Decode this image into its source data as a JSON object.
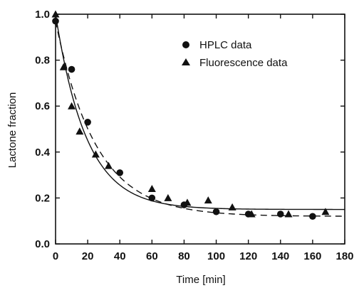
{
  "chart_data": {
    "type": "scatter",
    "xlabel": "Time [min]",
    "ylabel": "Lactone fraction",
    "xlim": [
      0,
      180
    ],
    "ylim": [
      0.0,
      1.0
    ],
    "xticks": [
      0,
      20,
      40,
      60,
      80,
      100,
      120,
      140,
      160,
      180
    ],
    "xtick_labels": [
      "0",
      "20",
      "40",
      "60",
      "80",
      "100",
      "120",
      "140",
      "160",
      "180"
    ],
    "yticks": [
      0.0,
      0.2,
      0.4,
      0.6,
      0.8,
      1.0
    ],
    "ytick_labels": [
      "0.0",
      "0.2",
      "0.4",
      "0.6",
      "0.8",
      "1.0"
    ],
    "grid": false,
    "legend_position": "top-right",
    "series": [
      {
        "name": "HPLC data",
        "marker": "circle",
        "x": [
          0,
          10,
          20,
          40,
          60,
          80,
          100,
          120,
          140,
          160
        ],
        "y": [
          0.97,
          0.76,
          0.53,
          0.31,
          0.2,
          0.17,
          0.14,
          0.13,
          0.13,
          0.12
        ]
      },
      {
        "name": "Fluorescence data",
        "marker": "triangle",
        "x": [
          0,
          5,
          10,
          15,
          25,
          33,
          60,
          70,
          82,
          95,
          110,
          122,
          145,
          168
        ],
        "y": [
          1.0,
          0.77,
          0.6,
          0.49,
          0.39,
          0.34,
          0.24,
          0.2,
          0.18,
          0.19,
          0.16,
          0.13,
          0.13,
          0.14
        ]
      }
    ],
    "fits": [
      {
        "style": "solid",
        "plateau": 0.15,
        "start": 1.0,
        "rate": 0.052
      },
      {
        "style": "dashed",
        "plateau": 0.12,
        "start": 0.97,
        "rate": 0.04
      }
    ],
    "colors": {
      "ink": "#111111",
      "background": "#ffffff"
    }
  }
}
